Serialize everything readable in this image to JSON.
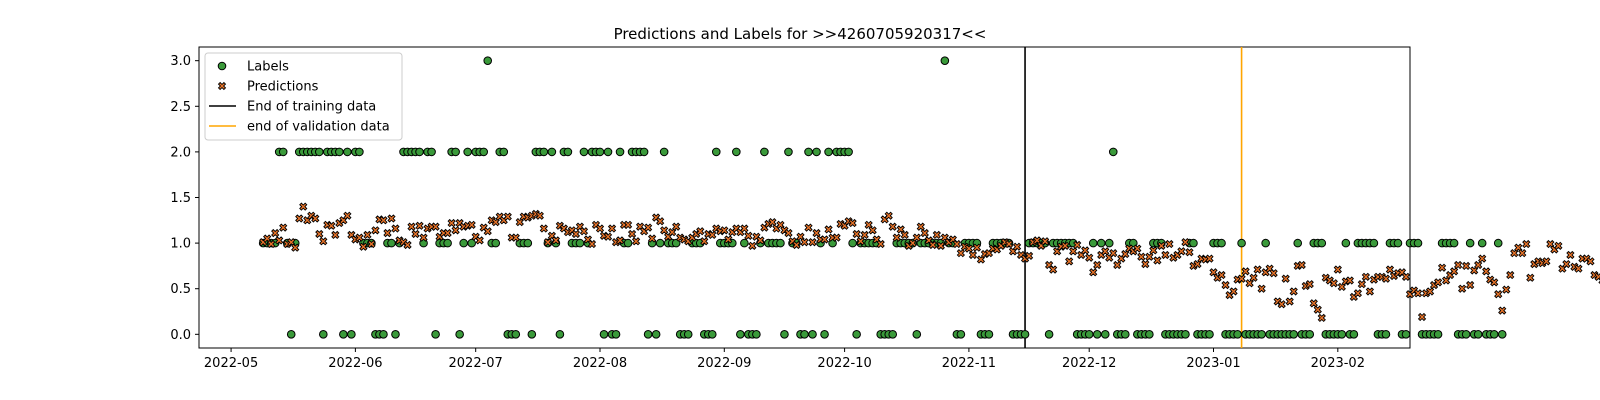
{
  "chart_data": {
    "type": "scatter",
    "title": "Predictions and Labels for >>4260705920317<<",
    "xlabel": "",
    "ylabel": "",
    "x_ticks": [
      "2022-05",
      "2022-06",
      "2022-07",
      "2022-08",
      "2022-09",
      "2022-10",
      "2022-11",
      "2022-12",
      "2023-01",
      "2023-02"
    ],
    "y_ticks": [
      "0.0",
      "0.5",
      "1.0",
      "1.5",
      "2.0",
      "2.5",
      "3.0"
    ],
    "xlim": [
      "2022-04-23",
      "2023-02-19"
    ],
    "ylim": [
      -0.15,
      3.15
    ],
    "grid": false,
    "legend_position": "top-left",
    "legend": [
      "Labels",
      "Predictions",
      "End of training data",
      "end of validation data"
    ],
    "colors": {
      "labels_fill": "#3a9a3a",
      "predictions_fill": "#e8742a",
      "marker_edge": "#000000",
      "training_line": "#000000",
      "validation_line": "#ffa500"
    },
    "vertical_lines": [
      {
        "name": "End of training data",
        "x": "2022-11-15"
      },
      {
        "name": "end of validation data",
        "x": "2023-01-08"
      }
    ],
    "start_date": "2022-05-09",
    "series": [
      {
        "name": "Labels",
        "marker": "circle",
        "y": [
          1,
          1,
          1,
          1,
          2,
          2,
          1,
          0,
          1,
          2,
          2,
          2,
          2,
          2,
          2,
          0,
          2,
          2,
          2,
          2,
          0,
          2,
          0,
          2,
          2,
          1,
          1,
          1,
          0,
          0,
          0,
          1,
          1,
          0,
          1,
          2,
          2,
          2,
          2,
          2,
          1,
          2,
          2,
          0,
          1,
          1,
          1,
          2,
          2,
          0,
          1,
          2,
          1,
          2,
          2,
          2,
          3,
          1,
          1,
          2,
          2,
          0,
          0,
          0,
          1,
          1,
          1,
          0,
          2,
          2,
          2,
          1,
          2,
          1,
          0,
          2,
          2,
          1,
          1,
          1,
          2,
          1,
          2,
          2,
          2,
          0,
          2,
          0,
          0,
          2,
          1,
          1,
          2,
          2,
          2,
          2,
          0,
          1,
          0,
          1,
          2,
          1,
          1,
          1,
          0,
          0,
          0,
          1,
          1,
          1,
          0,
          0,
          0,
          2,
          1,
          1,
          1,
          1,
          2,
          0,
          1,
          0,
          0,
          0,
          1,
          2,
          1,
          1,
          1,
          1,
          0,
          2,
          1,
          1,
          0,
          0,
          2,
          0,
          2,
          1,
          0,
          2,
          1,
          2,
          2,
          2,
          2,
          1,
          0,
          1,
          1,
          1,
          1,
          1,
          0,
          0,
          0,
          0,
          1,
          1,
          1,
          1,
          1,
          0,
          1,
          1,
          1,
          1,
          1,
          1,
          3,
          1,
          1,
          0,
          0,
          1,
          1,
          1,
          1,
          0,
          0,
          0,
          1,
          1,
          1,
          1,
          1,
          0,
          0,
          0,
          0,
          1,
          1,
          1,
          1,
          1,
          0,
          1,
          1,
          1,
          1,
          1,
          1,
          0,
          0,
          0,
          0,
          1,
          0,
          1,
          0,
          1,
          2,
          0,
          0,
          0,
          1,
          1,
          0,
          0,
          0,
          0,
          1,
          1,
          1,
          0,
          0,
          0,
          0,
          0,
          0,
          1,
          1,
          0,
          0,
          0,
          0,
          1,
          1,
          1,
          0,
          0,
          0,
          0,
          1,
          0,
          0,
          0,
          0,
          0,
          1,
          0,
          0,
          0,
          0,
          0,
          0,
          0,
          1,
          0,
          0,
          0,
          1,
          1,
          1,
          0,
          0,
          0,
          0,
          0,
          1,
          0,
          0,
          1,
          1,
          1,
          1,
          1,
          0,
          0,
          0,
          1,
          1,
          1,
          0,
          0,
          1,
          1,
          1,
          0,
          0,
          0,
          0,
          0,
          1,
          1,
          1,
          1,
          0,
          0,
          0,
          1,
          0,
          0,
          1,
          0,
          0,
          0,
          1,
          0
        ]
      },
      {
        "name": "Predictions",
        "marker": "x",
        "y": [
          1.01,
          1.05,
          0.99,
          1.11,
          1.03,
          1.17,
          0.99,
          1.01,
          0.95,
          1.27,
          1.4,
          1.25,
          1.3,
          1.27,
          1.1,
          1.02,
          1.2,
          1.19,
          1.09,
          1.22,
          1.25,
          1.3,
          1.09,
          1.04,
          1.06,
          0.96,
          1.09,
          0.99,
          1.14,
          1.26,
          1.25,
          1.11,
          1.27,
          1.16,
          1.03,
          1.01,
          0.98,
          1.18,
          1.1,
          1.19,
          1.06,
          1.16,
          1.18,
          1.18,
          1.07,
          1.11,
          1.11,
          1.22,
          1.14,
          1.22,
          1.18,
          1.19,
          1.2,
          1.07,
          1.03,
          1.17,
          1.13,
          1.25,
          1.23,
          1.29,
          1.25,
          1.29,
          1.06,
          1.06,
          1.23,
          1.29,
          1.28,
          1.3,
          1.32,
          1.3,
          1.16,
          1.01,
          1.08,
          1.03,
          1.19,
          1.16,
          1.12,
          1.14,
          1.1,
          1.18,
          1.13,
          1.04,
          0.99,
          1.2,
          1.16,
          1.08,
          1.07,
          1.16,
          1.01,
          1.03,
          1.2,
          1.2,
          1.1,
          1.02,
          1.18,
          1.13,
          1.17,
          1.05,
          1.28,
          1.24,
          1.14,
          1.07,
          1.12,
          1.18,
          1.06,
          1.04,
          1.02,
          1.06,
          1.1,
          1.13,
          1.02,
          1.1,
          1.09,
          1.16,
          1.13,
          1.14,
          1.04,
          1.12,
          1.16,
          1.12,
          1.16,
          1.08,
          0.97,
          1.07,
          1.03,
          1.17,
          1.21,
          1.23,
          1.16,
          1.2,
          1.14,
          1.11,
          1.02,
          0.98,
          1.07,
          1.01,
          1.17,
          1.01,
          1.11,
          1.04,
          1.04,
          1.15,
          1.06,
          1.06,
          1.21,
          1.19,
          1.24,
          1.22,
          1.1,
          1.02,
          1.09,
          1.2,
          1.14,
          1.04,
          0.99,
          1.26,
          1.3,
          1.18,
          1.06,
          1.15,
          1.09,
          0.97,
          1.0,
          1.06,
          1.18,
          1.11,
          1.03,
          0.98,
          1.09,
          0.97,
          1.06,
          1.01,
          1.04,
          0.99,
          0.89,
          0.96,
          0.94,
          0.87,
          0.95,
          0.82,
          0.88,
          0.89,
          0.94,
          0.93,
          0.97,
          1.01,
          0.99,
          0.91,
          0.96,
          0.87,
          0.83,
          0.86,
          1.01,
          1.03,
          0.97,
          1.02,
          0.76,
          0.71,
          0.91,
          0.96,
          0.97,
          0.8,
          0.91,
          0.98,
          0.87,
          0.92,
          0.84,
          0.68,
          0.76,
          0.87,
          0.91,
          0.84,
          0.89,
          0.76,
          0.83,
          0.88,
          0.94,
          0.91,
          0.94,
          0.85,
          0.77,
          0.85,
          0.92,
          0.81,
          0.97,
          0.87,
          0.99,
          0.84,
          0.87,
          0.91,
          1.01,
          0.9,
          0.75,
          0.77,
          0.83,
          0.82,
          0.83,
          0.68,
          0.62,
          0.65,
          0.54,
          0.43,
          0.47,
          0.6,
          0.61,
          0.69,
          0.56,
          0.62,
          0.71,
          0.5,
          0.68,
          0.72,
          0.67,
          0.36,
          0.33,
          0.61,
          0.36,
          0.47,
          0.75,
          0.76,
          0.53,
          0.55,
          0.34,
          0.27,
          0.18,
          0.62,
          0.59,
          0.56,
          0.71,
          0.52,
          0.58,
          0.59,
          0.41,
          0.45,
          0.55,
          0.63,
          0.47,
          0.6,
          0.63,
          0.63,
          0.61,
          0.71,
          0.64,
          0.67,
          0.68,
          0.63,
          0.44,
          0.48,
          0.45,
          0.19,
          0.45,
          0.47,
          0.54,
          0.57,
          0.73,
          0.59,
          0.65,
          0.69,
          0.76,
          0.5,
          0.75,
          0.54,
          0.7,
          0.76,
          0.83,
          0.69,
          0.6,
          0.57,
          0.44,
          0.26,
          0.49,
          0.65,
          0.89,
          0.95,
          0.89,
          0.99,
          0.62,
          0.77,
          0.8,
          0.78,
          0.8,
          0.99,
          0.93,
          0.97,
          0.72,
          0.77,
          0.87,
          0.74,
          0.72,
          0.83,
          0.83,
          0.8,
          0.65,
          0.63,
          0.59,
          0.96,
          0.87,
          1.06,
          1.04,
          0.97,
          0.7,
          1.02,
          1.01,
          1.02,
          0.98,
          1.03,
          1.0,
          0.54,
          0.61,
          0.71
        ]
      }
    ]
  }
}
